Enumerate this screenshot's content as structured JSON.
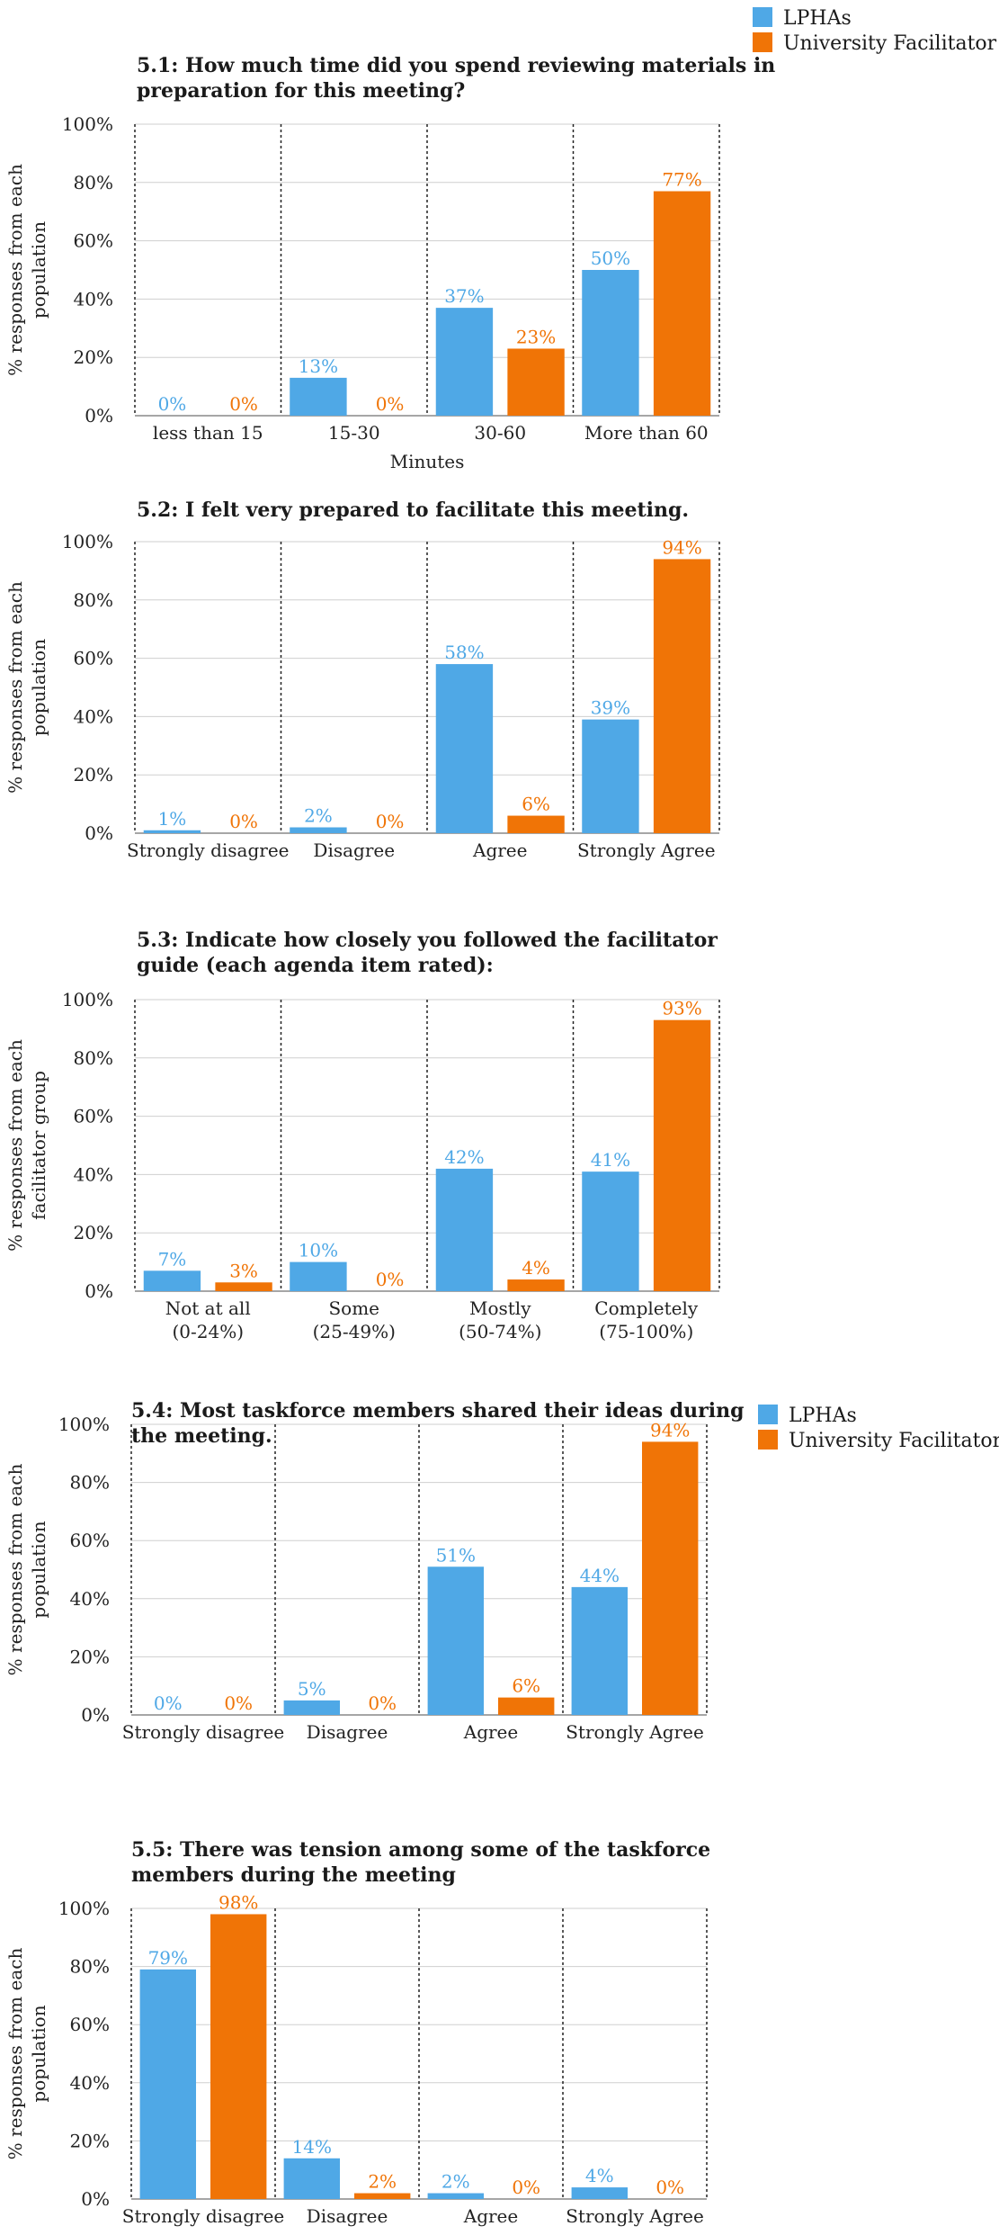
{
  "colors": {
    "lphas": "#4fa8e6",
    "facilitator": "#f07406",
    "grid": "#cfcfcf",
    "axis": "#888888",
    "divider": "#222222"
  },
  "legend": {
    "lphas": "LPHAs",
    "facilitator": "University Facilitator"
  },
  "chart_data": [
    {
      "type": "bar",
      "title_lines": [
        "5.1: How much time did you spend reviewing materials in",
        "preparation for this meeting?"
      ],
      "ylabel_lines": [
        "% responses from each",
        "population"
      ],
      "xlabel": "Minutes",
      "yticks": [
        "0%",
        "20%",
        "40%",
        "60%",
        "80%",
        "100%"
      ],
      "ylim": [
        0,
        100
      ],
      "categories": [
        [
          "less than 15"
        ],
        [
          "15-30"
        ],
        [
          "30-60"
        ],
        [
          "More than 60"
        ]
      ],
      "series": [
        {
          "name": "LPHAs",
          "values": [
            0,
            13,
            37,
            50
          ],
          "labels": [
            "0%",
            "13%",
            "37%",
            "50%"
          ]
        },
        {
          "name": "University Facilitator",
          "values": [
            0,
            0,
            23,
            77
          ],
          "labels": [
            "0%",
            "0%",
            "23%",
            "77%"
          ]
        }
      ]
    },
    {
      "type": "bar",
      "title_lines": [
        "5.2: I felt very prepared to facilitate this meeting."
      ],
      "ylabel_lines": [
        "% responses from each",
        "population"
      ],
      "xlabel": "",
      "yticks": [
        "0%",
        "20%",
        "40%",
        "60%",
        "80%",
        "100%"
      ],
      "ylim": [
        0,
        100
      ],
      "categories": [
        [
          "Strongly disagree"
        ],
        [
          "Disagree"
        ],
        [
          "Agree"
        ],
        [
          "Strongly Agree"
        ]
      ],
      "series": [
        {
          "name": "LPHAs",
          "values": [
            1,
            2,
            58,
            39
          ],
          "labels": [
            "1%",
            "2%",
            "58%",
            "39%"
          ]
        },
        {
          "name": "University Facilitator",
          "values": [
            0,
            0,
            6,
            94
          ],
          "labels": [
            "0%",
            "0%",
            "6%",
            "94%"
          ]
        }
      ]
    },
    {
      "type": "bar",
      "title_lines": [
        "5.3: Indicate how closely you followed the facilitator",
        "guide (each agenda item rated):"
      ],
      "ylabel_lines": [
        "% responses from each",
        "facilitator group"
      ],
      "xlabel": "",
      "yticks": [
        "0%",
        "20%",
        "40%",
        "60%",
        "80%",
        "100%"
      ],
      "ylim": [
        0,
        100
      ],
      "categories": [
        [
          "Not at all",
          "(0-24%)"
        ],
        [
          "Some",
          "(25-49%)"
        ],
        [
          "Mostly",
          "(50-74%)"
        ],
        [
          "Completely",
          "(75-100%)"
        ]
      ],
      "series": [
        {
          "name": "LPHAs",
          "values": [
            7,
            10,
            42,
            41
          ],
          "labels": [
            "7%",
            "10%",
            "42%",
            "41%"
          ]
        },
        {
          "name": "University Facilitator",
          "values": [
            3,
            0,
            4,
            93
          ],
          "labels": [
            "3%",
            "0%",
            "4%",
            "93%"
          ]
        }
      ]
    },
    {
      "type": "bar",
      "title_lines": [
        "5.4: Most taskforce members shared their ideas during",
        "the meeting."
      ],
      "ylabel_lines": [
        "% responses from each",
        "population"
      ],
      "xlabel": "",
      "yticks": [
        "0%",
        "20%",
        "40%",
        "60%",
        "80%",
        "100%"
      ],
      "ylim": [
        0,
        100
      ],
      "categories": [
        [
          "Strongly disagree"
        ],
        [
          "Disagree"
        ],
        [
          "Agree"
        ],
        [
          "Strongly Agree"
        ]
      ],
      "series": [
        {
          "name": "LPHAs",
          "values": [
            0,
            5,
            51,
            44
          ],
          "labels": [
            "0%",
            "5%",
            "51%",
            "44%"
          ]
        },
        {
          "name": "University Facilitator",
          "values": [
            0,
            0,
            6,
            94
          ],
          "labels": [
            "0%",
            "0%",
            "6%",
            "94%"
          ]
        }
      ]
    },
    {
      "type": "bar",
      "title_lines": [
        "5.5: There was tension among some of the taskforce",
        "members during the meeting"
      ],
      "ylabel_lines": [
        "% responses from each",
        "population"
      ],
      "xlabel": "",
      "yticks": [
        "0%",
        "20%",
        "40%",
        "60%",
        "80%",
        "100%"
      ],
      "ylim": [
        0,
        100
      ],
      "categories": [
        [
          "Strongly disagree"
        ],
        [
          "Disagree"
        ],
        [
          "Agree"
        ],
        [
          "Strongly Agree"
        ]
      ],
      "series": [
        {
          "name": "LPHAs",
          "values": [
            79,
            14,
            2,
            4
          ],
          "labels": [
            "79%",
            "14%",
            "2%",
            "4%"
          ]
        },
        {
          "name": "University Facilitator",
          "values": [
            98,
            2,
            0,
            0
          ],
          "labels": [
            "98%",
            "2%",
            "0%",
            "0%"
          ]
        }
      ]
    }
  ]
}
